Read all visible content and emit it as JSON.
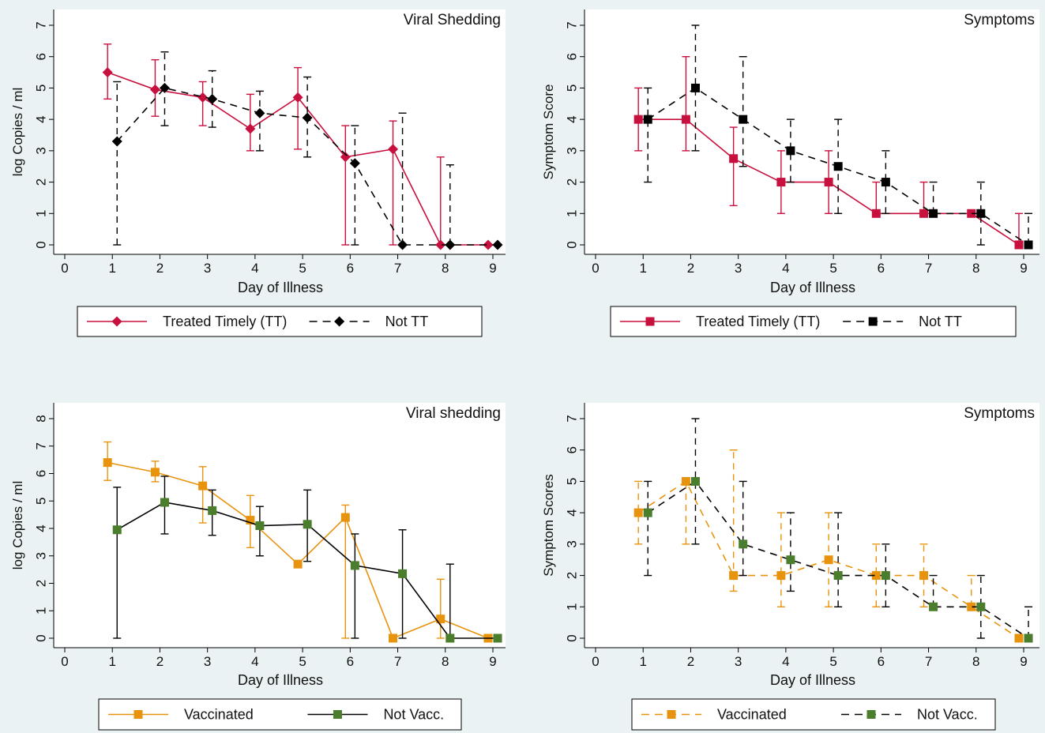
{
  "colors": {
    "background": "#eaf2f3",
    "plot_area": "#ffffff",
    "crimson": "#c8103e",
    "black": "#000000",
    "orange": "#e8930e",
    "green": "#4a7d2c"
  },
  "chart_data": [
    {
      "type": "line",
      "title": "Viral Shedding",
      "xlabel": "Day of Illness",
      "ylabel": "log Copies / ml",
      "xlim": [
        0,
        9
      ],
      "ylim": [
        0,
        7
      ],
      "xticks": [
        "0",
        "1",
        "2",
        "3",
        "4",
        "5",
        "6",
        "7",
        "8",
        "9"
      ],
      "yticks": [
        "0",
        "1",
        "2",
        "3",
        "4",
        "5",
        "6",
        "7"
      ],
      "grid": false,
      "legend": "bottom",
      "series": [
        {
          "name": "Treated Timely (TT)",
          "color": "#c8103e",
          "marker": "diamond",
          "dashed": false,
          "x": [
            0.9,
            1.9,
            2.9,
            3.9,
            4.9,
            5.9,
            6.9,
            7.9,
            8.9
          ],
          "y": [
            5.5,
            4.95,
            4.7,
            3.7,
            4.7,
            2.8,
            3.05,
            0,
            0
          ],
          "err_low": [
            4.65,
            4.1,
            3.8,
            3.0,
            3.05,
            0,
            0,
            0,
            0
          ],
          "err_high": [
            6.4,
            5.9,
            5.2,
            4.8,
            5.65,
            3.8,
            3.95,
            2.8,
            0
          ]
        },
        {
          "name": "Not TT",
          "color": "#000000",
          "marker": "diamond",
          "dashed": true,
          "x": [
            1.1,
            2.1,
            3.1,
            4.1,
            5.1,
            6.1,
            7.1,
            8.1,
            9.1
          ],
          "y": [
            3.3,
            5.0,
            4.65,
            4.2,
            4.05,
            2.6,
            0,
            0,
            0
          ],
          "err_low": [
            0,
            3.8,
            3.75,
            3.0,
            2.8,
            0,
            0,
            0,
            0
          ],
          "err_high": [
            5.2,
            6.15,
            5.55,
            4.9,
            5.35,
            3.8,
            4.2,
            2.55,
            0
          ]
        }
      ]
    },
    {
      "type": "line",
      "title": "Symptoms",
      "xlabel": "Day of Illness",
      "ylabel": "Symptom Score",
      "xlim": [
        0,
        9
      ],
      "ylim": [
        0,
        7
      ],
      "xticks": [
        "0",
        "1",
        "2",
        "3",
        "4",
        "5",
        "6",
        "7",
        "8",
        "9"
      ],
      "yticks": [
        "0",
        "1",
        "2",
        "3",
        "4",
        "5",
        "6",
        "7"
      ],
      "grid": false,
      "legend": "bottom",
      "series": [
        {
          "name": "Treated Timely (TT)",
          "color": "#c8103e",
          "marker": "square",
          "dashed": false,
          "x": [
            0.9,
            1.9,
            2.9,
            3.9,
            4.9,
            5.9,
            6.9,
            7.9,
            8.9
          ],
          "y": [
            4,
            4,
            2.75,
            2,
            2,
            1,
            1,
            1,
            0
          ],
          "err_low": [
            3,
            3,
            1.25,
            1,
            1,
            1,
            1,
            1,
            0
          ],
          "err_high": [
            5,
            6,
            3.75,
            3,
            3,
            2,
            2,
            1,
            1
          ]
        },
        {
          "name": "Not TT",
          "color": "#000000",
          "marker": "square",
          "dashed": true,
          "x": [
            1.1,
            2.1,
            3.1,
            4.1,
            5.1,
            6.1,
            7.1,
            8.1,
            9.1
          ],
          "y": [
            4,
            5,
            4,
            3,
            2.5,
            2,
            1,
            1,
            0
          ],
          "err_low": [
            2,
            3,
            2.5,
            2,
            1,
            1,
            1,
            0,
            0
          ],
          "err_high": [
            5,
            7,
            6,
            4,
            4,
            3,
            2,
            2,
            1
          ]
        }
      ]
    },
    {
      "type": "line",
      "title": "Viral shedding",
      "xlabel": "Day of Illness",
      "ylabel": "log Copies / ml",
      "xlim": [
        0,
        9
      ],
      "ylim": [
        0,
        8
      ],
      "xticks": [
        "0",
        "1",
        "2",
        "3",
        "4",
        "5",
        "6",
        "7",
        "8",
        "9"
      ],
      "yticks": [
        "0",
        "1",
        "2",
        "3",
        "4",
        "5",
        "6",
        "7",
        "8"
      ],
      "grid": false,
      "legend": "bottom",
      "series": [
        {
          "name": "Vaccinated",
          "color": "#e8930e",
          "marker": "square",
          "dashed": false,
          "x": [
            0.9,
            1.9,
            2.9,
            3.9,
            4.9,
            5.9,
            6.9,
            7.9,
            8.9
          ],
          "y": [
            6.4,
            6.05,
            5.55,
            4.3,
            2.7,
            4.4,
            0,
            0.7,
            0
          ],
          "err_low": [
            5.75,
            5.7,
            4.2,
            3.3,
            2.7,
            0,
            0,
            0,
            0
          ],
          "err_high": [
            7.15,
            6.45,
            6.25,
            5.2,
            2.7,
            4.85,
            0,
            2.15,
            0
          ]
        },
        {
          "name": "Not Vacc.",
          "color": "#4a7d2c",
          "line_color": "#000000",
          "marker": "square",
          "dashed": false,
          "x": [
            1.1,
            2.1,
            3.1,
            4.1,
            5.1,
            6.1,
            7.1,
            8.1,
            9.1
          ],
          "y": [
            3.95,
            4.95,
            4.65,
            4.1,
            4.15,
            2.65,
            2.35,
            0,
            0
          ],
          "err_low": [
            0,
            3.8,
            3.75,
            3.0,
            2.8,
            0,
            0,
            0,
            0
          ],
          "err_high": [
            5.5,
            5.9,
            5.4,
            4.8,
            5.4,
            3.8,
            3.95,
            2.7,
            0
          ]
        }
      ]
    },
    {
      "type": "line",
      "title": "Symptoms",
      "xlabel": "Day of Illness",
      "ylabel": "Symptom Scores",
      "xlim": [
        0,
        9
      ],
      "ylim": [
        0,
        7
      ],
      "xticks": [
        "0",
        "1",
        "2",
        "3",
        "4",
        "5",
        "6",
        "7",
        "8",
        "9"
      ],
      "yticks": [
        "0",
        "1",
        "2",
        "3",
        "4",
        "5",
        "6",
        "7"
      ],
      "grid": false,
      "legend": "bottom",
      "series": [
        {
          "name": "Vaccinated",
          "color": "#e8930e",
          "marker": "square",
          "dashed": true,
          "x": [
            0.9,
            1.9,
            2.9,
            3.9,
            4.9,
            5.9,
            6.9,
            7.9,
            8.9
          ],
          "y": [
            4,
            5,
            2,
            2,
            2.5,
            2,
            2,
            1,
            0
          ],
          "err_low": [
            3,
            3,
            1.5,
            1,
            1,
            1,
            1,
            1,
            0
          ],
          "err_high": [
            5,
            5,
            6,
            4,
            4,
            3,
            3,
            2,
            0
          ]
        },
        {
          "name": "Not Vacc.",
          "color": "#4a7d2c",
          "line_color": "#000000",
          "marker": "square",
          "dashed": true,
          "x": [
            1.1,
            2.1,
            3.1,
            4.1,
            5.1,
            6.1,
            7.1,
            8.1,
            9.1
          ],
          "y": [
            4,
            5,
            3,
            2.5,
            2,
            2,
            1,
            1,
            0
          ],
          "err_low": [
            2,
            3,
            2,
            1.5,
            1,
            1,
            1,
            0,
            0
          ],
          "err_high": [
            5,
            7,
            5,
            4,
            4,
            3,
            2,
            2,
            1
          ]
        }
      ]
    }
  ]
}
